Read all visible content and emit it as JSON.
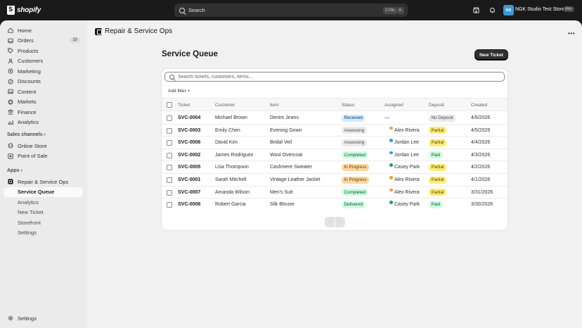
{
  "topbar": {
    "logo_text": "shopify",
    "search_label": "Search",
    "kbd_ctrl": "CTRL",
    "kbd_k": "K",
    "store_initials": "NS",
    "store_name": "NGK Studio Test Store",
    "store_badge": "dev"
  },
  "sidebar": {
    "items": [
      {
        "label": "Home",
        "icon": "home-icon"
      },
      {
        "label": "Orders",
        "icon": "inbox-icon",
        "count": "10"
      },
      {
        "label": "Products",
        "icon": "tag-icon"
      },
      {
        "label": "Customers",
        "icon": "person-icon"
      },
      {
        "label": "Marketing",
        "icon": "target-icon"
      },
      {
        "label": "Discounts",
        "icon": "discount-icon"
      },
      {
        "label": "Content",
        "icon": "image-icon"
      },
      {
        "label": "Markets",
        "icon": "globe-icon"
      },
      {
        "label": "Finance",
        "icon": "bank-icon"
      },
      {
        "label": "Analytics",
        "icon": "chart-icon"
      }
    ],
    "sales_channels_label": "Sales channels",
    "channels": [
      {
        "label": "Online Store",
        "icon": "store-icon"
      },
      {
        "label": "Point of Sale",
        "icon": "pos-icon"
      }
    ],
    "apps_label": "Apps",
    "app": {
      "label": "Repair & Service Ops",
      "icon": "app-icon"
    },
    "app_subitems": [
      {
        "label": "Service Queue"
      },
      {
        "label": "Analytics"
      },
      {
        "label": "New Ticket"
      },
      {
        "label": "Storefront"
      },
      {
        "label": "Settings"
      }
    ],
    "settings_label": "Settings"
  },
  "header": {
    "app_title": "Repair & Service Ops"
  },
  "page": {
    "title": "Service Queue",
    "new_ticket_label": "New Ticket",
    "search_placeholder": "Search tickets, customers, items...",
    "add_filter_label": "Add filter +",
    "columns": [
      "Ticket",
      "Customer",
      "Item",
      "Status",
      "Assigned",
      "Deposit",
      "Created"
    ],
    "rows": [
      {
        "ticket": "SVC-0004",
        "customer": "Michael Brown",
        "item": "Denim Jeans",
        "status": "Received",
        "assigned": "—",
        "assigned_color": "",
        "deposit": "No Deposit",
        "created": "4/6/2026"
      },
      {
        "ticket": "SVC-0003",
        "customer": "Emily Chen",
        "item": "Evening Gown",
        "status": "Assessing",
        "assigned": "Alex Rivera",
        "assigned_color": "#e8a33c",
        "deposit": "Partial",
        "created": "4/5/2026"
      },
      {
        "ticket": "SVC-0006",
        "customer": "David Kim",
        "item": "Bridal Veil",
        "status": "Assessing",
        "assigned": "Jordan Lee",
        "assigned_color": "#3b9bd8",
        "deposit": "Partial",
        "created": "4/4/2026"
      },
      {
        "ticket": "SVC-0002",
        "customer": "James Rodriguez",
        "item": "Wool Overcoat",
        "status": "Completed",
        "assigned": "Jordan Lee",
        "assigned_color": "#3b9bd8",
        "deposit": "Paid",
        "created": "4/3/2026"
      },
      {
        "ticket": "SVC-0005",
        "customer": "Lisa Thompson",
        "item": "Cashmere Sweater",
        "status": "In Progress",
        "assigned": "Casey Park",
        "assigned_color": "#29a36a",
        "deposit": "Partial",
        "created": "4/2/2026"
      },
      {
        "ticket": "SVC-0001",
        "customer": "Sarah Mitchell",
        "item": "Vintage Leather Jacket",
        "status": "In Progress",
        "assigned": "Alex Rivera",
        "assigned_color": "#e8a33c",
        "deposit": "Partial",
        "created": "4/1/2026"
      },
      {
        "ticket": "SVC-0007",
        "customer": "Amanda Wilson",
        "item": "Men's Suit",
        "status": "Completed",
        "assigned": "Alex Rivera",
        "assigned_color": "#e8a33c",
        "deposit": "Partial",
        "created": "3/31/2026"
      },
      {
        "ticket": "SVC-0008",
        "customer": "Robert Garcia",
        "item": "Silk Blouse",
        "status": "Delivered",
        "assigned": "Casey Park",
        "assigned_color": "#29a36a",
        "deposit": "Paid",
        "created": "3/30/2026"
      }
    ],
    "status_colors": {
      "Received": {
        "bg": "#d5ebff",
        "fg": "#003a6e"
      },
      "Assessing": {
        "bg": "#ebebeb",
        "fg": "#4a4a4a"
      },
      "Completed": {
        "bg": "#cdfee1",
        "fg": "#0c5132"
      },
      "In Progress": {
        "bg": "#ffd6a4",
        "fg": "#5e4200"
      },
      "Delivered": {
        "bg": "#cdfee1",
        "fg": "#0c5132"
      }
    },
    "deposit_colors": {
      "No Deposit": {
        "bg": "#ebebeb",
        "fg": "#4a4a4a"
      },
      "Partial": {
        "bg": "#ffeb78",
        "fg": "#4f4700"
      },
      "Paid": {
        "bg": "#cdfee1",
        "fg": "#0c5132"
      }
    },
    "pager_prev": "‹",
    "pager_next": "›"
  }
}
